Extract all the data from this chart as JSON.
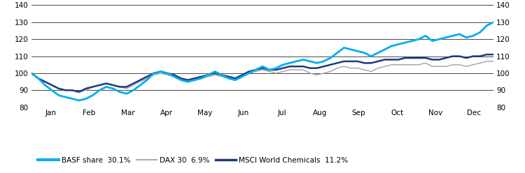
{
  "ylim": [
    80,
    140
  ],
  "yticks": [
    80,
    90,
    100,
    110,
    120,
    130,
    140
  ],
  "months": [
    "Jan",
    "Feb",
    "Mar",
    "Apr",
    "May",
    "Jun",
    "Jul",
    "Aug",
    "Sep",
    "Oct",
    "Nov",
    "Dec"
  ],
  "basf_color": "#00AEEF",
  "dax_color": "#AAAAAA",
  "msci_color": "#1F3A7A",
  "legend_entries": [
    "BASF share  30.1%",
    "DAX 30  6.9%",
    "MSCI World Chemicals  11.2%"
  ],
  "basf": [
    100,
    97,
    93,
    90,
    87,
    86,
    85,
    84,
    85,
    87,
    90,
    92,
    91,
    89,
    88,
    90,
    93,
    96,
    100,
    101,
    100,
    98,
    96,
    95,
    96,
    97,
    99,
    101,
    99,
    97,
    96,
    98,
    100,
    102,
    104,
    102,
    103,
    105,
    106,
    107,
    108,
    107,
    106,
    107,
    109,
    112,
    115,
    114,
    113,
    112,
    110,
    112,
    114,
    116,
    117,
    118,
    119,
    120,
    122,
    119,
    120,
    121,
    122,
    123,
    121,
    122,
    124,
    128,
    130
  ],
  "dax": [
    100,
    97,
    95,
    93,
    91,
    90,
    90,
    89,
    90,
    92,
    93,
    94,
    93,
    92,
    91,
    93,
    95,
    97,
    99,
    100,
    99,
    98,
    96,
    95,
    96,
    97,
    98,
    99,
    98,
    97,
    96,
    98,
    100,
    101,
    102,
    101,
    100,
    101,
    102,
    102,
    102,
    100,
    99,
    100,
    101,
    103,
    104,
    103,
    103,
    102,
    101,
    103,
    104,
    105,
    105,
    105,
    105,
    105,
    106,
    104,
    104,
    104,
    105,
    105,
    104,
    105,
    106,
    107,
    107
  ],
  "msci": [
    100,
    97,
    95,
    93,
    91,
    90,
    90,
    89,
    91,
    92,
    93,
    94,
    93,
    92,
    92,
    94,
    96,
    98,
    100,
    101,
    100,
    99,
    97,
    96,
    97,
    98,
    99,
    100,
    99,
    98,
    97,
    99,
    101,
    102,
    103,
    102,
    102,
    103,
    104,
    104,
    104,
    103,
    103,
    104,
    105,
    106,
    107,
    107,
    107,
    106,
    106,
    107,
    108,
    108,
    108,
    109,
    109,
    109,
    109,
    108,
    108,
    109,
    110,
    110,
    109,
    110,
    110,
    111,
    111
  ]
}
